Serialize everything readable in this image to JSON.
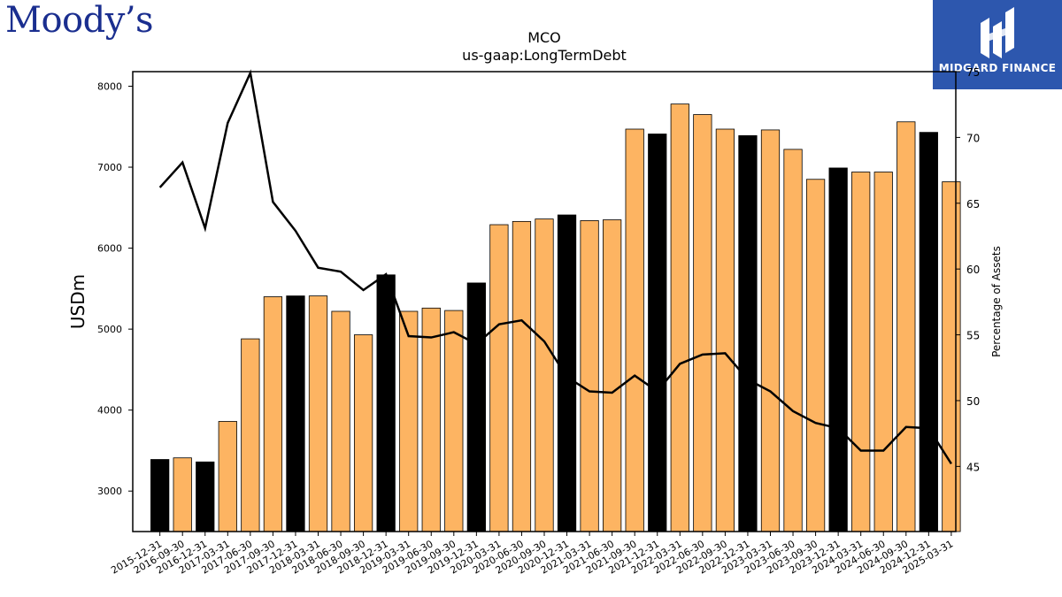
{
  "brand": {
    "left_logo_text": "Moody’s",
    "right_logo_text": "MIDGARD FINANCE",
    "right_logo_bg": "#2d57ae",
    "left_logo_color": "#1a2e8f"
  },
  "chart_data": {
    "type": "bar",
    "title": "MCO",
    "subtitle": "us-gaap:LongTermDebt",
    "ylabel": "USDm",
    "y2label": "Percentage of Assets",
    "ylim": [
      2500,
      8180
    ],
    "y2lim": [
      40.05,
      75
    ],
    "yticks": [
      3000,
      4000,
      5000,
      6000,
      7000,
      8000
    ],
    "y2ticks": [
      45,
      50,
      55,
      60,
      65,
      70,
      75
    ],
    "grid": false,
    "colors": {
      "bar_default": "#fdb462",
      "bar_q4": "#000000",
      "line": "#000000"
    },
    "categories": [
      "2015-12-31",
      "2016-09-30",
      "2016-12-31",
      "2017-03-31",
      "2017-06-30",
      "2017-09-30",
      "2017-12-31",
      "2018-03-31",
      "2018-06-30",
      "2018-09-30",
      "2018-12-31",
      "2019-03-31",
      "2019-06-30",
      "2019-09-30",
      "2019-12-31",
      "2020-03-31",
      "2020-06-30",
      "2020-09-30",
      "2020-12-31",
      "2021-03-31",
      "2021-06-30",
      "2021-09-30",
      "2021-12-31",
      "2022-03-31",
      "2022-06-30",
      "2022-09-30",
      "2022-12-31",
      "2023-03-31",
      "2023-06-30",
      "2023-09-30",
      "2023-12-31",
      "2024-03-31",
      "2024-06-30",
      "2024-09-30",
      "2024-12-31",
      "2025-03-31"
    ],
    "series": [
      {
        "name": "",
        "kind": "bar",
        "values": [
          3390,
          3410,
          3360,
          3860,
          4880,
          5400,
          5410,
          5410,
          5220,
          4930,
          5670,
          5220,
          5260,
          5230,
          5570,
          6290,
          6330,
          6360,
          6410,
          6340,
          6350,
          7470,
          7410,
          7780,
          7650,
          7470,
          7390,
          7460,
          7220,
          6850,
          6990,
          6940,
          6940,
          7560,
          7430,
          6820
        ]
      },
      {
        "name": "",
        "kind": "line",
        "axis": "right",
        "values": [
          66.2,
          68.1,
          63.1,
          71.1,
          74.9,
          65.1,
          62.9,
          60.1,
          59.8,
          58.4,
          59.6,
          54.9,
          54.8,
          55.2,
          54.3,
          55.8,
          56.1,
          54.5,
          51.8,
          50.7,
          50.6,
          51.9,
          50.7,
          52.8,
          53.5,
          53.6,
          51.6,
          50.7,
          49.2,
          48.3,
          47.9,
          46.2,
          46.2,
          48.0,
          47.9,
          45.2
        ]
      }
    ]
  }
}
